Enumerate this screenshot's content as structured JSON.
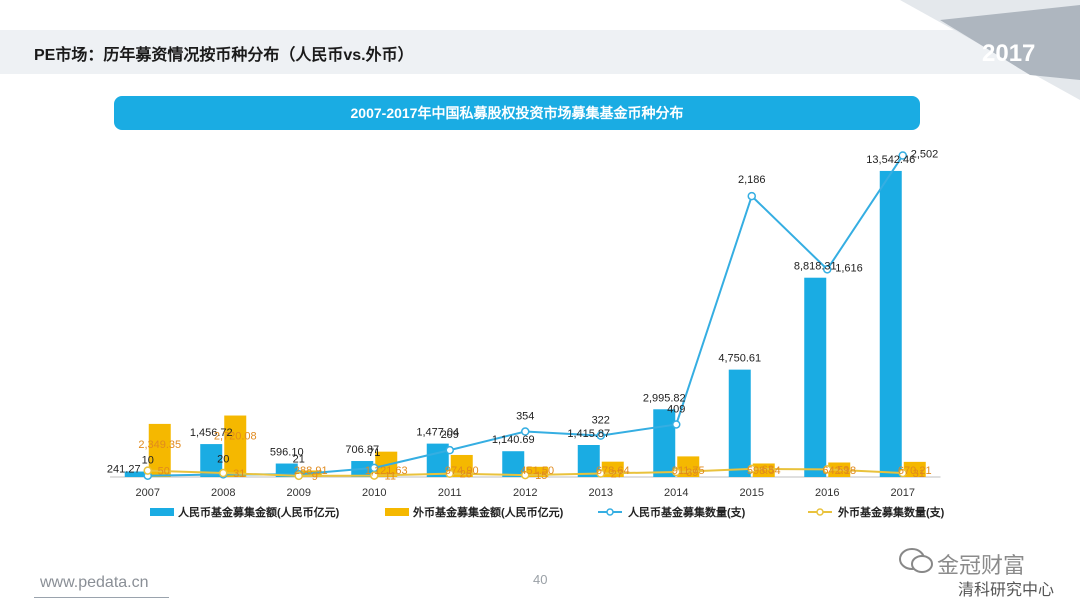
{
  "page": {
    "title": "PE市场：历年募资情况按币种分布（人民币vs.外币）",
    "year_badge": "2017",
    "footer_url": "www.pedata.cn",
    "page_number": "40",
    "watermark_main": "金冠财富",
    "watermark_sub": "清科研究中心"
  },
  "colors": {
    "rmb_amount": "#1aace3",
    "fx_amount": "#f5b800",
    "rmb_count": "#35aee2",
    "fx_count": "#e9c23c",
    "title_bar": "#1aace3",
    "fx_label": "#e08a1e"
  },
  "chart_data": {
    "type": "bar",
    "title": "2007-2017年中国私募股权投资市场募集基金币种分布",
    "categories": [
      "2007",
      "2008",
      "2009",
      "2010",
      "2011",
      "2012",
      "2013",
      "2014",
      "2015",
      "2016",
      "2017"
    ],
    "series": [
      {
        "name": "人民币基金募集金额(人民币亿元)",
        "type": "bar",
        "axis": "left",
        "values": [
          241.27,
          1456.72,
          596.1,
          706.87,
          1477.04,
          1140.69,
          1415.87,
          2995.82,
          4750.61,
          8818.31,
          13542.46
        ],
        "labels": [
          "241.27",
          "1,456.72",
          "596.10",
          "706.87",
          "1,477.04",
          "1,140.69",
          "1,415.87",
          "2,995.82",
          "4,750.61",
          "8,818.31",
          "13,542.46"
        ]
      },
      {
        "name": "外币基金募集金额(人民币亿元)",
        "type": "bar",
        "axis": "left",
        "values": [
          2349.35,
          2720.08,
          288.91,
          1121.63,
          974.9,
          451.5,
          678.64,
          911.75,
          598.54,
          642.18,
          670.21
        ],
        "labels": [
          "2,349.35",
          "2,720.08",
          "288.91",
          "1,121.63",
          "974.90",
          "451.50",
          "678.64",
          "911.75",
          "598.54",
          "642.18",
          "670.21"
        ]
      },
      {
        "name": "人民币基金募集数量(支)",
        "type": "line",
        "axis": "right",
        "values": [
          10,
          20,
          21,
          71,
          209,
          354,
          322,
          409,
          2186,
          1616,
          2502
        ],
        "labels": [
          "10",
          "20",
          "21",
          "71",
          "209",
          "354",
          "322",
          "409",
          "2,186",
          "1,616",
          "2,502"
        ]
      },
      {
        "name": "外币基金募集数量(支)",
        "type": "line",
        "axis": "right",
        "values": [
          50,
          31,
          9,
          11,
          26,
          15,
          27,
          39,
          63,
          59,
          31
        ],
        "labels": [
          "50",
          "31",
          "9",
          "11",
          "26",
          "15",
          "27",
          "39",
          "63",
          "59",
          "31"
        ]
      }
    ]
  }
}
